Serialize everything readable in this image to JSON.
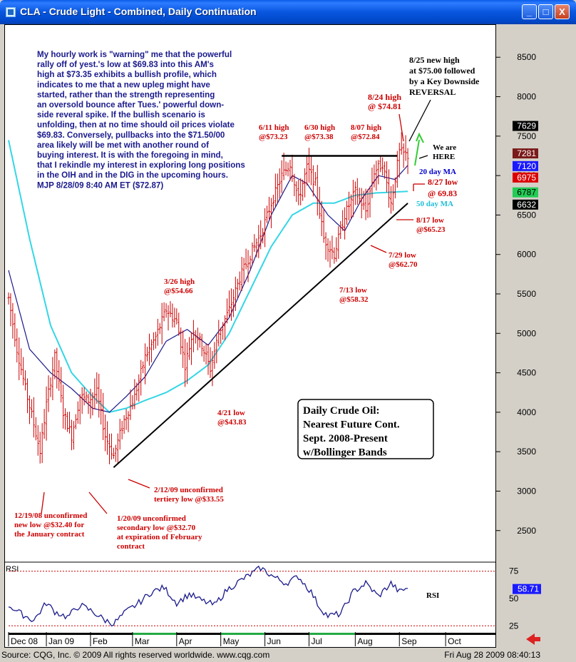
{
  "window": {
    "title": "CLA - Crude Light - Combined, Daily Continuation",
    "minimize": "_",
    "maximize": "□",
    "close": "X"
  },
  "status": {
    "source": "Source: CQG, Inc. © 2009 All rights reserved worldwide. www.cqg.com",
    "timestamp": "Fri Aug 28 2009 08:40:13"
  },
  "commentary": [
    "My hourly work is \"warning\" me that the powerful",
    "rally off of yest.'s low at $69.83 into this AM's",
    "high at $73.35 exhibits a bullish profile, which",
    "indicates to me that a new upleg might have",
    "started, rather than the strength representing",
    "an oversold bounce after Tues.' powerful down-",
    "side reveral spike. If the bullish scenario is",
    "unfolding, then at no time should oil prices violate",
    "$69.83.  Conversely, pullbacks into the $71.50/00",
    "area likely will be met with another round of",
    "buying interest. It is with the foregoing in mind,",
    "that I rekindle my interest in exploring long positions",
    "in the OIH and in the DIG in the upcoming hours.",
    "MJP 8/28/09  8:40 AM ET  ($72.87)"
  ],
  "box_label": [
    "Daily Crude Oil:",
    "Nearest Future Cont.",
    "Sept. 2008-Present",
    "w/Bollinger Bands"
  ],
  "colors": {
    "candles": "#cc0000",
    "ma20": "#1a1a8c",
    "ma50": "#33d6e6",
    "trendline": "#000000",
    "annotation_red": "#cc0000",
    "annotation_blue": "#0000cc",
    "rsi": "#1a1a8c"
  },
  "chart_data": {
    "type": "candlestick",
    "y_axis": {
      "range": [
        2100,
        8900
      ],
      "ticks": [
        2500,
        3000,
        3500,
        4000,
        4500,
        5000,
        5500,
        6000,
        6500,
        7000,
        7500,
        8000,
        8500
      ]
    },
    "x_axis": {
      "months": [
        "Dec 08",
        "Jan 09",
        "Feb",
        "Mar",
        "Apr",
        "May",
        "Jun",
        "Jul",
        "Aug",
        "Sep",
        "Oct"
      ]
    },
    "price_tags": [
      {
        "value": "7629",
        "bg": "#000000",
        "fg": "#ffffff"
      },
      {
        "value": "7281",
        "bg": "#7a1a1a",
        "fg": "#ffffff"
      },
      {
        "value": "7120",
        "bg": "#1a1aff",
        "fg": "#ffffff"
      },
      {
        "value": "6975",
        "bg": "#dd0000",
        "fg": "#ffffff"
      },
      {
        "value": "6787",
        "bg": "#22cc55",
        "fg": "#000000"
      },
      {
        "value": "6632",
        "bg": "#000000",
        "fg": "#ffffff"
      }
    ],
    "ohlc_anchors": [
      [
        0,
        5450
      ],
      [
        4,
        4800
      ],
      [
        8,
        4300
      ],
      [
        12,
        3850
      ],
      [
        15,
        3500
      ],
      [
        18,
        4100
      ],
      [
        22,
        4700
      ],
      [
        26,
        4000
      ],
      [
        30,
        3700
      ],
      [
        34,
        4200
      ],
      [
        38,
        4150
      ],
      [
        42,
        4250
      ],
      [
        46,
        3700
      ],
      [
        50,
        3450
      ],
      [
        55,
        3900
      ],
      [
        60,
        4200
      ],
      [
        65,
        4700
      ],
      [
        70,
        4950
      ],
      [
        75,
        5300
      ],
      [
        80,
        5150
      ],
      [
        84,
        4600
      ],
      [
        88,
        5050
      ],
      [
        92,
        4850
      ],
      [
        96,
        4550
      ],
      [
        100,
        5000
      ],
      [
        105,
        5300
      ],
      [
        110,
        5700
      ],
      [
        115,
        6000
      ],
      [
        120,
        6250
      ],
      [
        125,
        6650
      ],
      [
        130,
        7000
      ],
      [
        134,
        7150
      ],
      [
        138,
        6700
      ],
      [
        142,
        7100
      ],
      [
        146,
        6900
      ],
      [
        150,
        6200
      ],
      [
        155,
        6000
      ],
      [
        160,
        6500
      ],
      [
        165,
        6800
      ],
      [
        170,
        6550
      ],
      [
        174,
        7050
      ],
      [
        178,
        7150
      ],
      [
        182,
        6650
      ],
      [
        186,
        7300
      ],
      [
        190,
        7250
      ]
    ],
    "ma20_anchors": [
      [
        0,
        5800
      ],
      [
        10,
        4800
      ],
      [
        20,
        4500
      ],
      [
        30,
        4300
      ],
      [
        40,
        4050
      ],
      [
        48,
        4000
      ],
      [
        56,
        4200
      ],
      [
        65,
        4450
      ],
      [
        75,
        4900
      ],
      [
        85,
        5050
      ],
      [
        95,
        4850
      ],
      [
        105,
        5200
      ],
      [
        115,
        5800
      ],
      [
        125,
        6500
      ],
      [
        135,
        7000
      ],
      [
        142,
        6900
      ],
      [
        152,
        6500
      ],
      [
        160,
        6300
      ],
      [
        168,
        6700
      ],
      [
        176,
        7000
      ],
      [
        184,
        6950
      ],
      [
        190,
        7130
      ]
    ],
    "ma50_anchors": [
      [
        0,
        7450
      ],
      [
        10,
        6200
      ],
      [
        20,
        5100
      ],
      [
        30,
        4500
      ],
      [
        40,
        4200
      ],
      [
        48,
        4000
      ],
      [
        56,
        4050
      ],
      [
        65,
        4150
      ],
      [
        75,
        4250
      ],
      [
        85,
        4400
      ],
      [
        95,
        4600
      ],
      [
        105,
        5000
      ],
      [
        115,
        5550
      ],
      [
        125,
        6100
      ],
      [
        135,
        6500
      ],
      [
        145,
        6650
      ],
      [
        155,
        6650
      ],
      [
        165,
        6750
      ],
      [
        175,
        6780
      ],
      [
        190,
        6800
      ]
    ],
    "trendline": [
      [
        50,
        3300
      ],
      [
        190,
        6650
      ]
    ],
    "resistance": [
      [
        130,
        7250
      ],
      [
        185,
        7250
      ]
    ],
    "annotations": [
      {
        "lines": [
          "3/26 high",
          "@$54.66"
        ]
      },
      {
        "lines": [
          "4/21 low",
          "@$43.83"
        ]
      },
      {
        "lines": [
          "6/11 high",
          "@$73.23"
        ]
      },
      {
        "lines": [
          "6/30 high",
          "@$73.38"
        ]
      },
      {
        "lines": [
          "8/07 high",
          "@$72.84"
        ]
      },
      {
        "lines": [
          "8/24 high",
          "@ $74.81"
        ]
      },
      {
        "lines": [
          "8/25 new high",
          "at $75.00 followed",
          "by a Key Downside",
          "REVERSAL"
        ]
      },
      {
        "lines": [
          "We are",
          "HERE"
        ]
      },
      {
        "lines": [
          "20 day MA"
        ]
      },
      {
        "lines": [
          "8/27 low",
          "@ 69.83"
        ]
      },
      {
        "lines": [
          "50 day MA"
        ]
      },
      {
        "lines": [
          "8/17 low",
          "@$65.23"
        ]
      },
      {
        "lines": [
          "7/29 low",
          "@$62.70"
        ]
      },
      {
        "lines": [
          "7/13 low",
          "@$58.32"
        ]
      },
      {
        "lines": [
          "2/12/09 unconfirmed",
          "tertiery low @$33.55"
        ]
      },
      {
        "lines": [
          "12/19/08 unconfirmed",
          "new low @$32.40 for",
          "the January contract"
        ]
      },
      {
        "lines": [
          "1/20/09 unconfirmed",
          "secondary low @$32.70",
          "at expiration of February",
          "contract"
        ]
      }
    ],
    "rsi": {
      "label": "RSI",
      "inline_label": "RSI",
      "ticks": [
        25,
        50,
        75
      ],
      "range": [
        18,
        82
      ],
      "current": "58.71",
      "anchors": [
        [
          0,
          44
        ],
        [
          6,
          36
        ],
        [
          12,
          30
        ],
        [
          18,
          46
        ],
        [
          22,
          38
        ],
        [
          28,
          33
        ],
        [
          34,
          44
        ],
        [
          40,
          38
        ],
        [
          46,
          30
        ],
        [
          50,
          27
        ],
        [
          56,
          38
        ],
        [
          62,
          46
        ],
        [
          68,
          56
        ],
        [
          74,
          60
        ],
        [
          80,
          46
        ],
        [
          86,
          54
        ],
        [
          92,
          48
        ],
        [
          98,
          44
        ],
        [
          104,
          58
        ],
        [
          110,
          66
        ],
        [
          116,
          73
        ],
        [
          120,
          78
        ],
        [
          126,
          70
        ],
        [
          132,
          64
        ],
        [
          138,
          70
        ],
        [
          144,
          56
        ],
        [
          148,
          42
        ],
        [
          152,
          34
        ],
        [
          158,
          36
        ],
        [
          164,
          56
        ],
        [
          170,
          64
        ],
        [
          176,
          52
        ],
        [
          182,
          64
        ],
        [
          186,
          56
        ],
        [
          190,
          60
        ]
      ]
    }
  }
}
